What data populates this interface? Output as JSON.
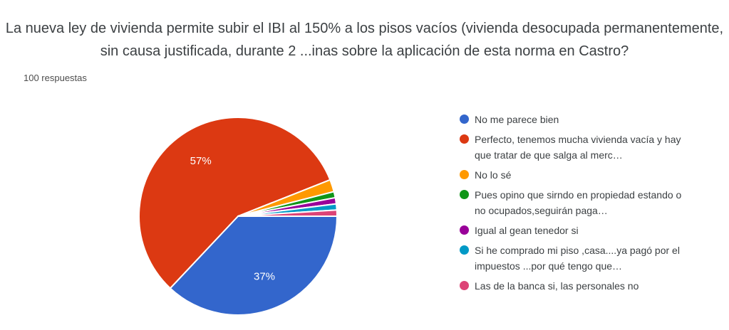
{
  "header": {
    "title": "La nueva ley de vivienda permite subir el IBI al 150% a los pisos vacíos (vivienda desocupada permanentemente, sin causa justificada, durante 2 ...inas sobre la aplicación de esta norma en Castro?",
    "responses_count": "100 respuestas"
  },
  "chart_data": {
    "type": "pie",
    "title": "La nueva ley de vivienda permite subir el IBI al 150% a los pisos vacíos (vivienda desocupada permanentemente, sin causa justificada, durante 2 ...inas sobre la aplicación de esta norma en Castro?",
    "total_responses": 100,
    "start_angle_deg": 0,
    "direction": "clockwise",
    "legend_position": "right",
    "separator_color": "#ffffff",
    "slices": [
      {
        "label": "No me parece bien",
        "value": 37,
        "pct_label": "37%",
        "color": "#3366CC"
      },
      {
        "label": "Perfecto, tenemos mucha vivienda vacía y hay que tratar de que salga al merc…",
        "value": 57,
        "pct_label": "57%",
        "color": "#DC3912"
      },
      {
        "label": "No lo sé",
        "value": 2,
        "pct_label": null,
        "color": "#FF9900"
      },
      {
        "label": "Pues opino que sirndo en propiedad estando o no ocupados,seguirán paga…",
        "value": 1,
        "pct_label": null,
        "color": "#109618"
      },
      {
        "label": "Igual al gean tenedor si",
        "value": 1,
        "pct_label": null,
        "color": "#990099"
      },
      {
        "label": "Si he comprado mi piso ,casa....ya pagó por el impuestos ...por qué tengo que…",
        "value": 1,
        "pct_label": null,
        "color": "#0099C6"
      },
      {
        "label": "Las de la banca si, las personales no",
        "value": 1,
        "pct_label": null,
        "color": "#DD4477"
      }
    ]
  }
}
